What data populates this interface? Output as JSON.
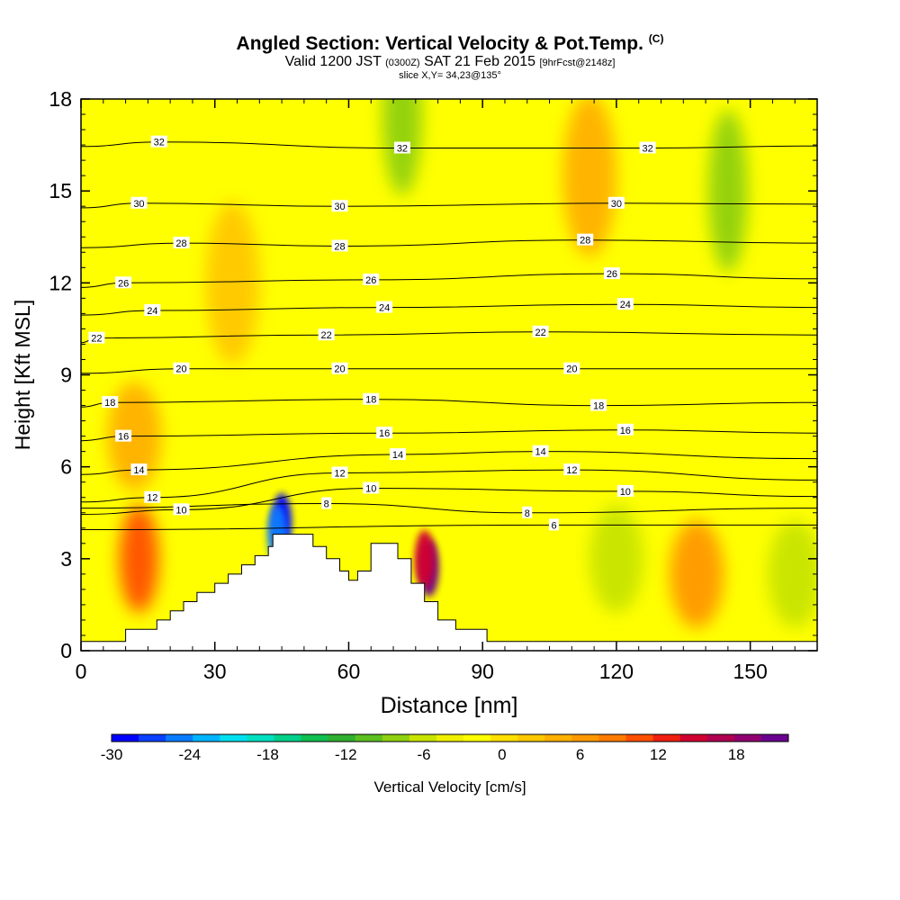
{
  "header": {
    "title": "Angled Section: Vertical Velocity & Pot.Temp.",
    "title_tag": "(C)",
    "valid_prefix": "Valid 1200 JST",
    "valid_utc": "(0300Z)",
    "valid_date": "SAT 21 Feb 2015",
    "forecast": "[9hrFcst@2148z]",
    "slice": "slice X,Y= 34,23@135°"
  },
  "chart_data": {
    "type": "heatmap",
    "title": "Angled Section: Vertical Velocity & Pot.Temp.",
    "xlabel": "Distance [nm]",
    "ylabel": "Height [Kft MSL]",
    "xlim": [
      0,
      165
    ],
    "ylim": [
      0,
      18
    ],
    "x_ticks": [
      0,
      30,
      60,
      90,
      120,
      150
    ],
    "x_tick_labels": [
      "0",
      "30",
      "60",
      "90",
      "120",
      "150"
    ],
    "y_ticks": [
      0,
      3,
      6,
      9,
      12,
      15,
      18
    ],
    "y_tick_labels": [
      "0",
      "3",
      "6",
      "9",
      "12",
      "15",
      "18"
    ],
    "colorbar": {
      "label": "Vertical Velocity [cm/s]",
      "min": -30,
      "max": 22,
      "tick_values": [
        -30,
        -24,
        -18,
        -12,
        -6,
        0,
        6,
        12,
        18
      ],
      "tick_labels": [
        "-30",
        "-24",
        "-18",
        "-12",
        "-6",
        "0",
        "6",
        "12",
        "18"
      ],
      "colors": [
        "#0000ff",
        "#0a40ff",
        "#0a7cff",
        "#00b4ff",
        "#00e0f0",
        "#00e0c0",
        "#00d08a",
        "#10c050",
        "#30b030",
        "#5cc020",
        "#90d010",
        "#c8e400",
        "#f0f000",
        "#ffff00",
        "#ffe000",
        "#ffc800",
        "#ffb000",
        "#ff9800",
        "#ff7c00",
        "#ff5000",
        "#f02010",
        "#d00030",
        "#b00050",
        "#900070",
        "#6a0090"
      ]
    },
    "terrain_profile": {
      "x": [
        0,
        10,
        10,
        17,
        17,
        20,
        20,
        23,
        23,
        26,
        26,
        30,
        30,
        33,
        33,
        36,
        36,
        39,
        39,
        42,
        42,
        43,
        43,
        46,
        46,
        52,
        52,
        55,
        55,
        58,
        58,
        60,
        60,
        62,
        62,
        65,
        65,
        71,
        71,
        74,
        74,
        77,
        77,
        80,
        80,
        84,
        84,
        91,
        91,
        165
      ],
      "y": [
        0.3,
        0.3,
        0.7,
        0.7,
        1.0,
        1.0,
        1.3,
        1.3,
        1.6,
        1.6,
        1.9,
        1.9,
        2.2,
        2.2,
        2.5,
        2.5,
        2.8,
        2.8,
        3.1,
        3.1,
        3.4,
        3.4,
        3.8,
        3.8,
        3.8,
        3.8,
        3.4,
        3.4,
        3.0,
        3.0,
        2.6,
        2.6,
        2.3,
        2.3,
        2.6,
        2.6,
        3.5,
        3.5,
        3.0,
        3.0,
        2.2,
        2.2,
        1.6,
        1.6,
        1.0,
        1.0,
        0.7,
        0.7,
        0.3,
        0.3
      ]
    },
    "potential_temperature_contours": {
      "units": "C",
      "labeled_levels": [
        6,
        8,
        10,
        12,
        14,
        16,
        18,
        20,
        22,
        24,
        26,
        28,
        30,
        32
      ],
      "labels": [
        {
          "x": 17.5,
          "y": 16.6,
          "text": "32"
        },
        {
          "x": 72,
          "y": 16.4,
          "text": "32"
        },
        {
          "x": 127,
          "y": 16.4,
          "text": "32"
        },
        {
          "x": 13,
          "y": 14.6,
          "text": "30"
        },
        {
          "x": 58,
          "y": 14.5,
          "text": "30"
        },
        {
          "x": 120,
          "y": 14.6,
          "text": "30"
        },
        {
          "x": 22.5,
          "y": 13.3,
          "text": "28"
        },
        {
          "x": 58,
          "y": 13.2,
          "text": "28"
        },
        {
          "x": 113,
          "y": 13.4,
          "text": "28"
        },
        {
          "x": 9.5,
          "y": 12.0,
          "text": "26"
        },
        {
          "x": 65,
          "y": 12.1,
          "text": "26"
        },
        {
          "x": 119,
          "y": 12.3,
          "text": "26"
        },
        {
          "x": 16,
          "y": 11.1,
          "text": "24"
        },
        {
          "x": 68,
          "y": 11.2,
          "text": "24"
        },
        {
          "x": 122,
          "y": 11.3,
          "text": "24"
        },
        {
          "x": 3.5,
          "y": 10.2,
          "text": "22"
        },
        {
          "x": 55,
          "y": 10.3,
          "text": "22"
        },
        {
          "x": 103,
          "y": 10.4,
          "text": "22"
        },
        {
          "x": 22.5,
          "y": 9.2,
          "text": "20"
        },
        {
          "x": 58,
          "y": 9.2,
          "text": "20"
        },
        {
          "x": 110,
          "y": 9.2,
          "text": "20"
        },
        {
          "x": 6.5,
          "y": 8.1,
          "text": "18"
        },
        {
          "x": 65,
          "y": 8.2,
          "text": "18"
        },
        {
          "x": 116,
          "y": 8.0,
          "text": "18"
        },
        {
          "x": 9.5,
          "y": 7.0,
          "text": "16"
        },
        {
          "x": 68,
          "y": 7.1,
          "text": "16"
        },
        {
          "x": 122,
          "y": 7.2,
          "text": "16"
        },
        {
          "x": 13,
          "y": 5.9,
          "text": "14"
        },
        {
          "x": 71,
          "y": 6.4,
          "text": "14"
        },
        {
          "x": 103,
          "y": 6.5,
          "text": "14"
        },
        {
          "x": 16,
          "y": 5.0,
          "text": "12"
        },
        {
          "x": 58,
          "y": 5.8,
          "text": "12"
        },
        {
          "x": 110,
          "y": 5.9,
          "text": "12"
        },
        {
          "x": 22.5,
          "y": 4.6,
          "text": "10"
        },
        {
          "x": 65,
          "y": 5.3,
          "text": "10"
        },
        {
          "x": 122,
          "y": 5.2,
          "text": "10"
        },
        {
          "x": 55,
          "y": 4.8,
          "text": "8"
        },
        {
          "x": 100,
          "y": 4.5,
          "text": "8"
        },
        {
          "x": 106,
          "y": 4.1,
          "text": "6"
        }
      ]
    },
    "vertical_velocity_features": [
      {
        "x": 45,
        "y": 4.2,
        "value": -30
      },
      {
        "x": 44,
        "y": 3.8,
        "value": -24
      },
      {
        "x": 78,
        "y": 2.7,
        "value": 20
      },
      {
        "x": 77,
        "y": 3.0,
        "value": 14
      },
      {
        "x": 13,
        "y": 3.0,
        "value": 10
      },
      {
        "x": 12,
        "y": 7.0,
        "value": 4
      },
      {
        "x": 34,
        "y": 12.0,
        "value": 2
      },
      {
        "x": 145,
        "y": 15.0,
        "value": -8
      },
      {
        "x": 120,
        "y": 3.0,
        "value": -6
      },
      {
        "x": 138,
        "y": 2.5,
        "value": 6
      },
      {
        "x": 114,
        "y": 15.5,
        "value": 4
      },
      {
        "x": 72,
        "y": 17.5,
        "value": -8
      },
      {
        "x": 160,
        "y": 2.5,
        "value": -6
      }
    ]
  }
}
